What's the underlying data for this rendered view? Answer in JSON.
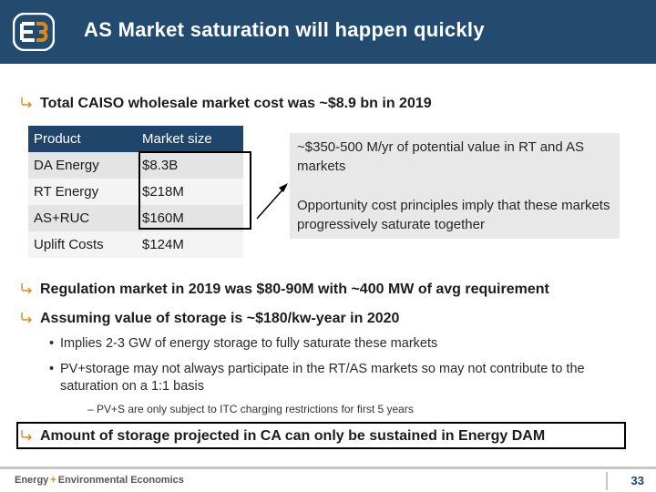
{
  "header": {
    "title": "AS Market saturation will happen quickly"
  },
  "bullets": {
    "b1": "Total CAISO wholesale market cost was ~$8.9 bn in 2019",
    "b2": "Regulation market in 2019 was $80-90M with ~400 MW of avg requirement",
    "b3": "Assuming value of storage is ~$180/kw-year in 2020",
    "b3_sub1": "Implies 2-3 GW of energy storage to fully saturate these markets",
    "b3_sub2": "PV+storage may not always participate in the RT/AS markets so may not contribute to the saturation on a 1:1 basis",
    "b3_subsub1": "PV+S are only subject to ITC charging restrictions for first 5 years",
    "b4": "Amount of storage projected in CA can only be sustained in Energy DAM",
    "dash": "–",
    "dot": "•"
  },
  "table": {
    "headers": [
      "Product",
      "Market size"
    ],
    "rows": [
      [
        "DA Energy",
        "$8.3B"
      ],
      [
        "RT Energy",
        "$218M"
      ],
      [
        "AS+RUC",
        "$160M"
      ],
      [
        "Uplift Costs",
        "$124M"
      ]
    ]
  },
  "side_box": {
    "p1": "~$350-500 M/yr of potential value in RT and AS markets",
    "p2": "Opportunity cost principles imply that these markets progressively saturate together"
  },
  "footer": {
    "brand_left": "Energy",
    "brand_amp": "+",
    "brand_right": "Environmental Economics",
    "page": "33"
  },
  "colors": {
    "header_bg": "#234a6f",
    "accent": "#d7891f",
    "table_head": "#1f456a"
  }
}
